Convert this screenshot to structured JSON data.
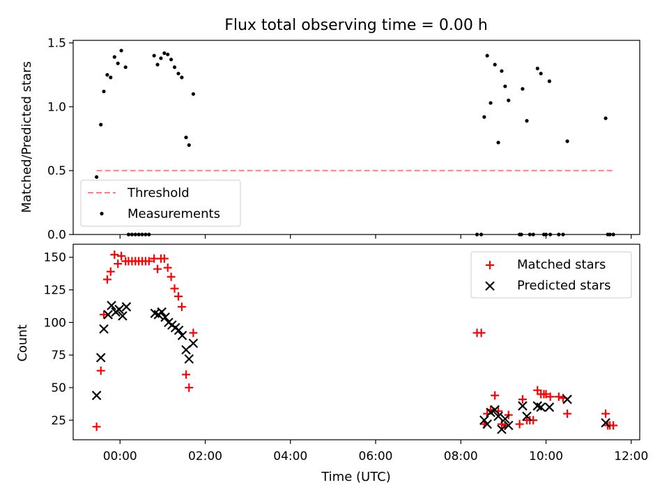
{
  "chart_data": [
    {
      "type": "scatter",
      "title": "Flux total observing time = 0.00 h",
      "ylabel": "Matched/Predicted stars",
      "xlabel": "",
      "xlim": [
        -1.1,
        12.2
      ],
      "ylim": [
        0,
        1.52
      ],
      "yticks": [
        0,
        0.5,
        1.0,
        1.5
      ],
      "ytick_labels": [
        "0.0",
        "0.5",
        "1.0",
        "1.5"
      ],
      "threshold": {
        "name": "Threshold",
        "value": 0.5,
        "x_start": -0.55,
        "x_end": 11.6,
        "color": "#ff7f7f"
      },
      "series": [
        {
          "name": "Measurements",
          "color": "#000000",
          "x": [
            -0.55,
            -0.45,
            -0.38,
            -0.3,
            -0.22,
            -0.13,
            -0.05,
            0.03,
            0.13,
            0.8,
            0.88,
            0.96,
            1.04,
            1.12,
            1.2,
            1.28,
            1.37,
            1.45,
            1.55,
            1.62,
            1.72,
            8.55,
            8.62,
            8.7,
            8.8,
            8.88,
            8.96,
            9.04,
            9.12,
            9.45,
            9.55,
            9.8,
            9.88,
            10.08,
            10.5,
            11.4,
            0.2,
            0.28,
            0.36,
            0.44,
            0.52,
            0.6,
            0.68,
            8.38,
            8.48,
            9.38,
            9.42,
            9.62,
            9.7,
            9.95,
            10.0,
            10.1,
            10.3,
            10.4,
            11.45,
            11.5,
            11.58
          ],
          "y": [
            0.45,
            0.86,
            1.12,
            1.25,
            1.23,
            1.39,
            1.34,
            1.44,
            1.31,
            1.4,
            1.33,
            1.38,
            1.42,
            1.41,
            1.37,
            1.31,
            1.26,
            1.23,
            0.76,
            0.7,
            1.1,
            0.92,
            1.4,
            1.03,
            1.33,
            0.72,
            1.28,
            1.16,
            1.05,
            1.14,
            0.89,
            1.3,
            1.26,
            1.2,
            0.73,
            0.91,
            0,
            0,
            0,
            0,
            0,
            0,
            0,
            0,
            0,
            0,
            0,
            0,
            0,
            0,
            0,
            0,
            0,
            0,
            0,
            0,
            0
          ]
        }
      ],
      "legend": {
        "placement": "lower-left",
        "entries": [
          "Threshold",
          "Measurements"
        ]
      }
    },
    {
      "type": "scatter",
      "title": "",
      "ylabel": "Count",
      "xlabel": "Time (UTC)",
      "xlim": [
        -1.1,
        12.2
      ],
      "ylim": [
        10,
        160
      ],
      "yticks": [
        25,
        50,
        75,
        100,
        125,
        150
      ],
      "ytick_labels": [
        "25",
        "50",
        "75",
        "100",
        "125",
        "150"
      ],
      "xticks": [
        0,
        2,
        4,
        6,
        8,
        10,
        12
      ],
      "xtick_labels": [
        "00:00",
        "02:00",
        "04:00",
        "06:00",
        "08:00",
        "10:00",
        "12:00"
      ],
      "series": [
        {
          "name": "Matched stars",
          "marker": "plus",
          "color": "#ff0000",
          "x": [
            -0.55,
            -0.45,
            -0.38,
            -0.3,
            -0.22,
            -0.13,
            -0.05,
            0.03,
            0.13,
            0.2,
            0.28,
            0.36,
            0.44,
            0.52,
            0.6,
            0.68,
            0.8,
            0.88,
            0.96,
            1.04,
            1.12,
            1.2,
            1.28,
            1.37,
            1.45,
            1.55,
            1.62,
            1.72,
            8.38,
            8.48,
            8.55,
            8.62,
            8.7,
            8.8,
            8.88,
            8.96,
            9.04,
            9.12,
            9.38,
            9.45,
            9.55,
            9.62,
            9.7,
            9.8,
            9.88,
            9.95,
            10.0,
            10.1,
            10.3,
            10.4,
            10.5,
            11.4,
            11.45,
            11.5,
            11.58
          ],
          "y": [
            20,
            63,
            106,
            133,
            139,
            152,
            145,
            151,
            147,
            147,
            147,
            147,
            147,
            147,
            147,
            147,
            149,
            141,
            149,
            149,
            142,
            135,
            126,
            120,
            112,
            60,
            50,
            92,
            92,
            92,
            22,
            30,
            33,
            44,
            32,
            22,
            21,
            29,
            22,
            41,
            25,
            25,
            25,
            48,
            45,
            45,
            45,
            43,
            43,
            42,
            30,
            30,
            21,
            21,
            21
          ]
        },
        {
          "name": "Predicted stars",
          "marker": "x",
          "color": "#000000",
          "x": [
            -0.55,
            -0.45,
            -0.38,
            -0.28,
            -0.2,
            -0.1,
            -0.02,
            0.06,
            0.15,
            0.82,
            0.9,
            0.98,
            1.06,
            1.14,
            1.22,
            1.3,
            1.38,
            1.46,
            1.55,
            1.62,
            1.72,
            8.55,
            8.62,
            8.7,
            8.8,
            8.88,
            8.96,
            9.04,
            9.12,
            9.45,
            9.55,
            9.8,
            9.88,
            10.08,
            10.5,
            11.4
          ],
          "y": [
            44,
            73,
            95,
            106,
            113,
            108,
            110,
            105,
            112,
            107,
            106,
            108,
            104,
            100,
            98,
            96,
            94,
            90,
            79,
            72,
            84,
            25,
            22,
            31,
            33,
            28,
            18,
            26,
            21,
            36,
            28,
            36,
            35,
            35,
            41,
            23
          ]
        }
      ],
      "legend": {
        "placement": "upper-right",
        "entries": [
          "Matched stars",
          "Predicted stars"
        ]
      }
    }
  ]
}
